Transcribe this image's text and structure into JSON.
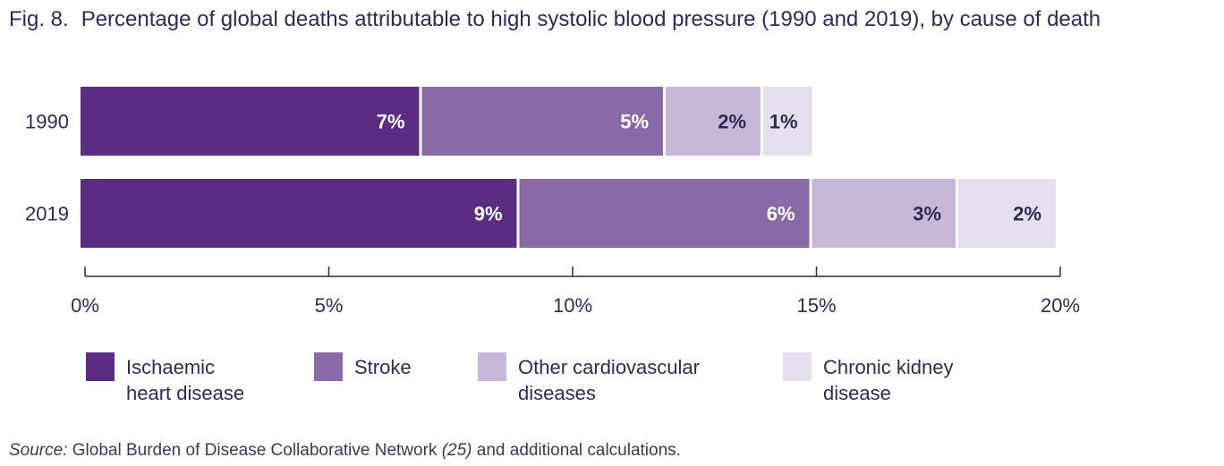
{
  "title": {
    "prefix": "Fig. 8.",
    "text": "Percentage of global deaths attributable to high systolic blood pressure (1990 and 2019), by cause of death"
  },
  "chart_data": {
    "type": "bar",
    "orientation": "horizontal",
    "stacked": true,
    "categories": [
      "1990",
      "2019"
    ],
    "series": [
      {
        "name": "Ischaemic heart disease",
        "color": "#5a2d82",
        "label_color": "#ffffff",
        "values": [
          7,
          9
        ],
        "labels": [
          "7%",
          "9%"
        ]
      },
      {
        "name": "Stroke",
        "color": "#8a6aa6",
        "label_color": "#ffffff",
        "values": [
          5,
          6
        ],
        "labels": [
          "5%",
          "6%"
        ]
      },
      {
        "name": "Other cardiovascular diseases",
        "color": "#c8b8d8",
        "label_color": "#2c2c55",
        "values": [
          2,
          3
        ],
        "labels": [
          "2%",
          "3%"
        ]
      },
      {
        "name": "Chronic kidney disease",
        "color": "#e6e0ee",
        "label_color": "#2c2c55",
        "values": [
          1,
          2
        ],
        "labels": [
          "1%",
          "2%"
        ]
      }
    ],
    "xlim": [
      0,
      20
    ],
    "xticks": [
      0,
      5,
      10,
      15,
      20
    ],
    "xtick_labels": [
      "0%",
      "5%",
      "10%",
      "15%",
      "20%"
    ],
    "xlabel": "",
    "ylabel": "",
    "grid": false,
    "legend_position": "bottom"
  },
  "legend": [
    {
      "label": "Ischaemic\nheart disease",
      "color": "#5a2d82",
      "icon": "square-swatch"
    },
    {
      "label": "Stroke",
      "color": "#8a6aa6",
      "icon": "square-swatch"
    },
    {
      "label": "Other cardiovascular\ndiseases",
      "color": "#c8b8d8",
      "icon": "square-swatch"
    },
    {
      "label": "Chronic kidney\ndisease",
      "color": "#e6e0ee",
      "icon": "square-swatch"
    }
  ],
  "source": {
    "label": "Source:",
    "text_before": " Global Burden of Disease Collaborative Network ",
    "ref": "(25)",
    "text_after": " and additional calculations."
  }
}
